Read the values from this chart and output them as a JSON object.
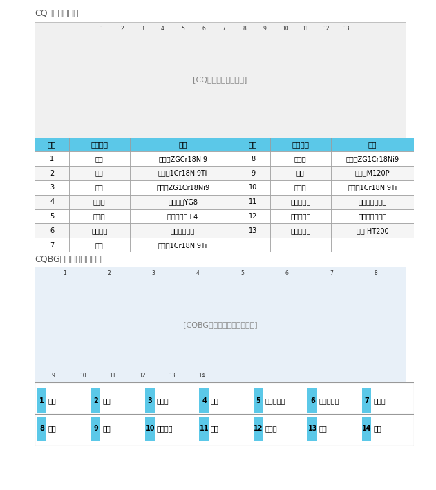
{
  "title1": "CQ磁力泵结构图",
  "title2": "CQBG高温磁力泵结构图",
  "table1_headers": [
    "序号",
    "零件名称",
    "材料",
    "序号",
    "零件名称",
    "材料"
  ],
  "table1_data": [
    [
      "1",
      "泵体",
      "不锈钢ZGCr18Ni9",
      "8",
      "轴承体",
      "不锈钢ZG1Cr18Ni9"
    ],
    [
      "2",
      "扣环",
      "不锈钢1Cr18Ni9Ti",
      "9",
      "轴承",
      "碳石墨M120P"
    ],
    [
      "3",
      "叶轮",
      "不锈钢ZG1Cr18Ni9",
      "10",
      "隔离套",
      "不锈钢1Cr18Ni9Ti"
    ],
    [
      "4",
      "止推环",
      "硬质合金YG8",
      "11",
      "内磁钢总成",
      "杉枯磁钢组合件"
    ],
    [
      "5",
      "密封圈",
      "聚四氟乙烯 F4",
      "12",
      "外磁钢总成",
      "杉枯磁钢组合件"
    ],
    [
      "6",
      "冷却装置",
      "不锈钢组合件",
      "13",
      "冷却联接架",
      "铸件 HT200"
    ],
    [
      "7",
      "泵轴",
      "不锈钢1Cr18Ni9Ti",
      "",
      "",
      ""
    ]
  ],
  "table2_row1": [
    "1 泵体",
    "2 叶轮",
    "3 密封圈",
    "4 隔板",
    "5 内磁钢总成",
    "6 外磁钢总成",
    "7 联接架"
  ],
  "table2_row2": [
    "8 电机",
    "9 轴承",
    "10 轴承压盖",
    "11 泵轴",
    "12  隔离套",
    "13   动环",
    "14  静环"
  ],
  "header_color": "#5bc8e8",
  "header_text_color": "#000000",
  "row_even_color": "#ffffff",
  "row_odd_color": "#f5f5f5",
  "border_color": "#cccccc",
  "title_color": "#555555",
  "bg_color": "#ffffff"
}
